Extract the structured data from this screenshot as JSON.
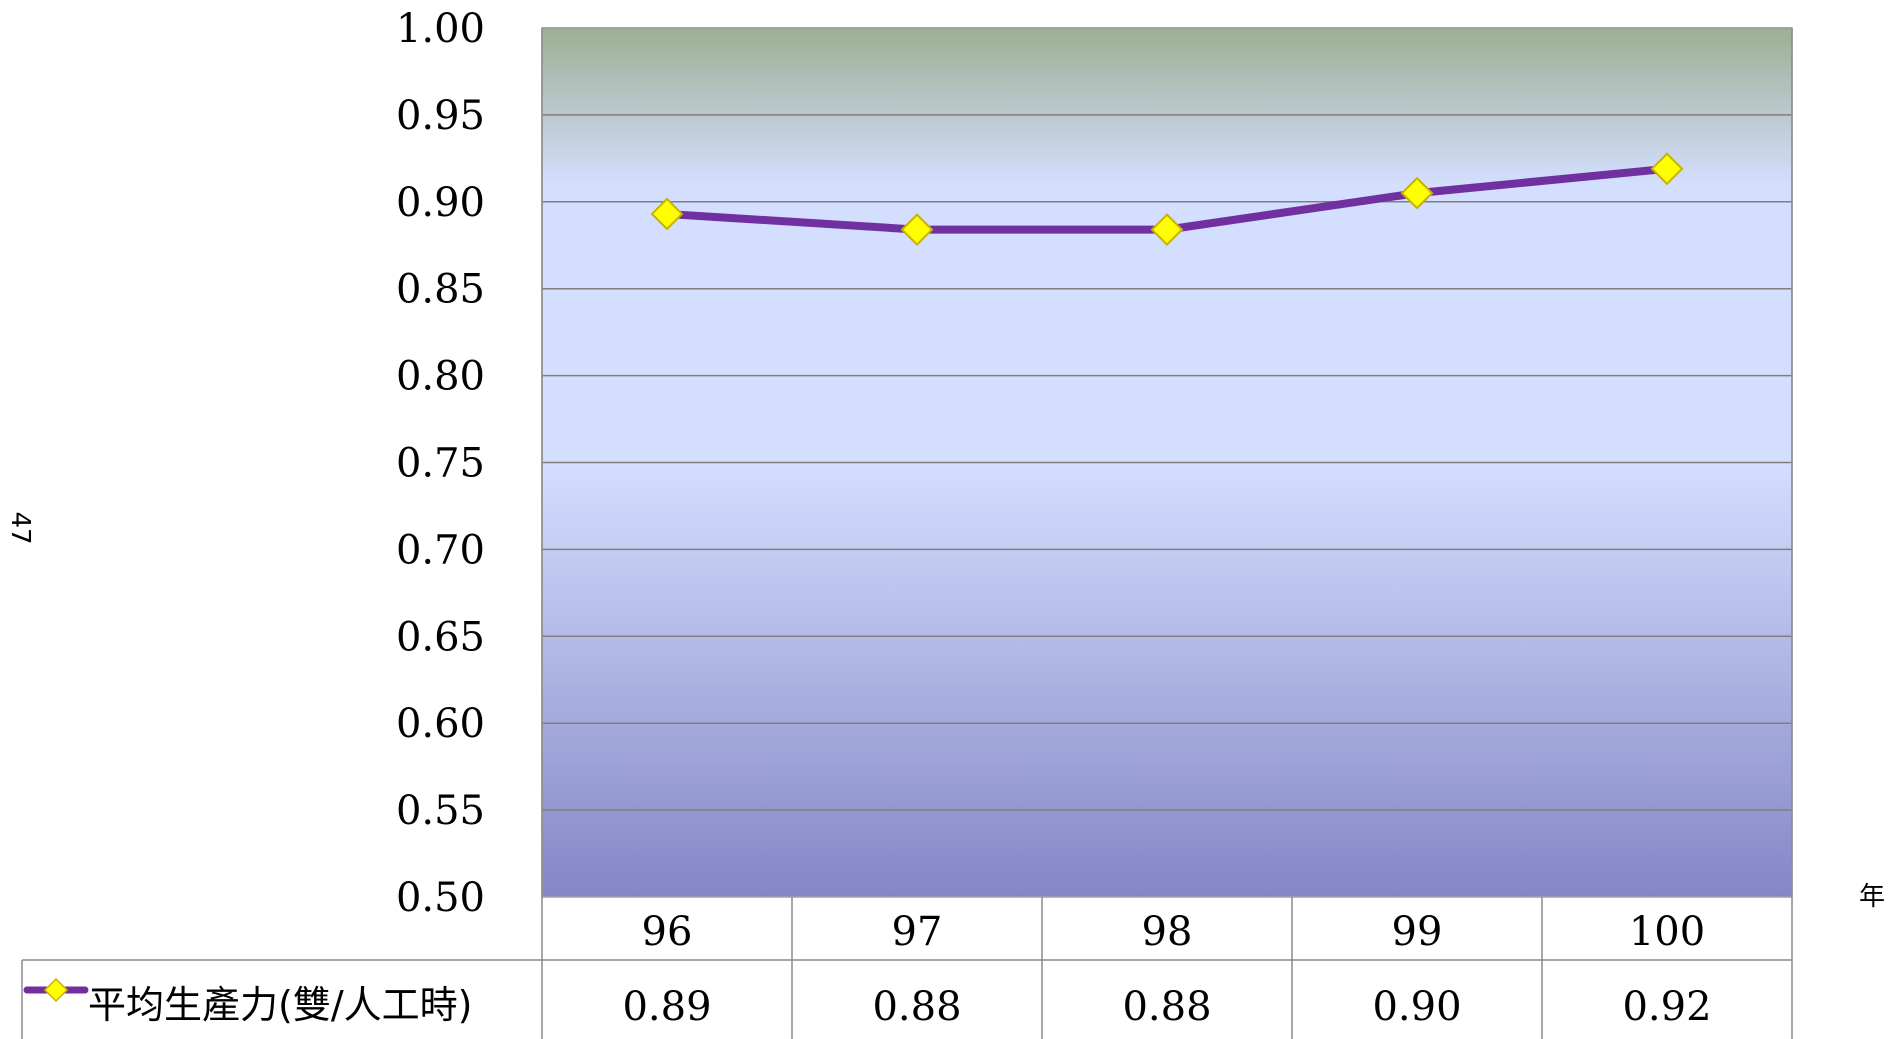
{
  "page_number": "47",
  "x_unit_label": "年",
  "chart_data": {
    "type": "line",
    "categories": [
      "96",
      "97",
      "98",
      "99",
      "100"
    ],
    "series": [
      {
        "name": "平均生產力(雙/人工時)",
        "values": [
          0.89,
          0.88,
          0.88,
          0.9,
          0.92
        ],
        "table_labels": [
          "0.89",
          "0.88",
          "0.88",
          "0.90",
          "0.92"
        ],
        "color": "#7030A0",
        "marker": "diamond",
        "marker_color": "#FFFF00"
      }
    ],
    "plotted_values": [
      0.893,
      0.884,
      0.884,
      0.905,
      0.919
    ],
    "ylim": [
      0.5,
      1.0
    ],
    "yticks": [
      "0.50",
      "0.55",
      "0.60",
      "0.65",
      "0.70",
      "0.75",
      "0.80",
      "0.85",
      "0.90",
      "0.95",
      "1.00"
    ],
    "grid": true,
    "data_table": true,
    "background_gradient": [
      "#9DAF93",
      "#D4DEFE",
      "#8486C6"
    ]
  }
}
